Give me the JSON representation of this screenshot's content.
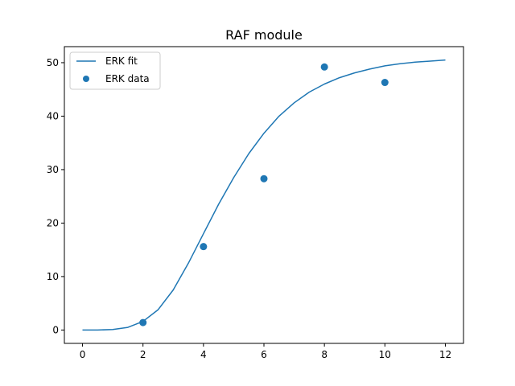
{
  "chart_data": {
    "type": "line",
    "title": "RAF module",
    "xlabel": "",
    "ylabel": "",
    "xlim": [
      -0.6,
      12.6
    ],
    "ylim": [
      -2.5,
      53.0
    ],
    "xticks": [
      0,
      2,
      4,
      6,
      8,
      10,
      12
    ],
    "yticks": [
      0,
      10,
      20,
      30,
      40,
      50
    ],
    "grid": false,
    "legend_position": "top-left",
    "series": [
      {
        "name": "ERK fit",
        "kind": "line",
        "color": "#1f77b4",
        "x": [
          0.0,
          0.5,
          1.0,
          1.5,
          2.0,
          2.5,
          3.0,
          3.5,
          4.0,
          4.5,
          5.0,
          5.5,
          6.0,
          6.5,
          7.0,
          7.5,
          8.0,
          8.5,
          9.0,
          9.5,
          10.0,
          10.5,
          11.0,
          11.5,
          12.0
        ],
        "y": [
          0.0,
          0.0,
          0.1,
          0.5,
          1.6,
          3.8,
          7.5,
          12.5,
          18.0,
          23.5,
          28.5,
          33.0,
          36.8,
          40.0,
          42.5,
          44.5,
          46.0,
          47.2,
          48.1,
          48.8,
          49.4,
          49.8,
          50.1,
          50.3,
          50.5
        ]
      },
      {
        "name": "ERK data",
        "kind": "scatter",
        "color": "#1f77b4",
        "x": [
          2,
          4,
          6,
          8,
          10
        ],
        "y": [
          1.4,
          15.6,
          28.3,
          49.2,
          46.3
        ]
      }
    ]
  }
}
